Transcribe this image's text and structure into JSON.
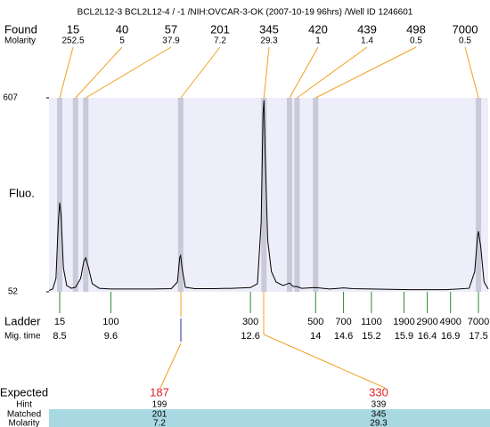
{
  "chart_data": {
    "type": "line",
    "title": "BCL2L12-3  BCL2L12-4 / -1 /NIH:OVCAR-3-OK (2007-10-19 96hrs) /Well ID 1246601",
    "y_label": "Fluo.",
    "ylim": [
      52,
      607
    ],
    "yticks": [
      52,
      607
    ],
    "xlim": [
      8.27,
      17.71
    ],
    "plot_color": "#eeeefa",
    "band_color": "#c9c9d9",
    "link_color": "#f0a020",
    "ladder_color": "#2a8a2a",
    "trace_color": "#000000",
    "trace": {
      "x": [
        8.27,
        8.35,
        8.42,
        8.47,
        8.5,
        8.53,
        8.58,
        8.65,
        8.75,
        8.84,
        8.95,
        9.02,
        9.06,
        9.12,
        9.2,
        9.35,
        9.6,
        10.0,
        10.5,
        10.9,
        11.03,
        11.08,
        11.1,
        11.13,
        11.2,
        11.4,
        11.8,
        12.2,
        12.6,
        12.75,
        12.83,
        12.87,
        12.89,
        12.92,
        12.97,
        13.05,
        13.15,
        13.3,
        13.44,
        13.52,
        13.6,
        13.7,
        14.0,
        14.3,
        14.6,
        14.8,
        15.2,
        16.0,
        16.8,
        17.3,
        17.42,
        17.48,
        17.5,
        17.55,
        17.62,
        17.71
      ],
      "y": [
        56,
        60,
        90,
        250,
        307,
        270,
        120,
        70,
        62,
        65,
        90,
        140,
        149,
        120,
        75,
        62,
        60,
        60,
        60,
        61,
        80,
        150,
        156,
        120,
        65,
        61,
        61,
        62,
        64,
        75,
        250,
        560,
        600,
        430,
        200,
        110,
        80,
        70,
        77,
        67,
        67,
        62,
        64,
        60,
        63,
        61,
        60,
        58,
        58,
        62,
        110,
        210,
        225,
        180,
        80,
        60
      ]
    },
    "found": {
      "label": "Found",
      "molarity_label": "Molarity",
      "peaks": [
        {
          "size": 15,
          "molarity": 252.5,
          "migtime": 8.5
        },
        {
          "size": 40,
          "molarity": 5,
          "migtime": 8.84
        },
        {
          "size": 57,
          "molarity": 37.9,
          "migtime": 9.06
        },
        {
          "size": 201,
          "molarity": 7.2,
          "migtime": 11.1
        },
        {
          "size": 345,
          "molarity": 29.3,
          "migtime": 12.89
        },
        {
          "size": 420,
          "molarity": 1,
          "migtime": 13.44
        },
        {
          "size": 439,
          "molarity": 1.4,
          "migtime": 13.6
        },
        {
          "size": 498,
          "molarity": 0.5,
          "migtime": 14.0
        },
        {
          "size": 7000,
          "molarity": 0.5,
          "migtime": 17.5
        }
      ]
    },
    "ladder": {
      "label": "Ladder",
      "migtime_label": "Mig. time",
      "sizes": [
        15,
        100,
        300,
        500,
        700,
        1100,
        1900,
        2900,
        4900,
        7000
      ],
      "migtimes": [
        8.5,
        9.6,
        12.6,
        14,
        14.6,
        15.2,
        15.9,
        16.4,
        16.9,
        17.5
      ]
    },
    "table": {
      "expected": {
        "label": "Expected",
        "values": [
          187,
          330
        ]
      },
      "hint": {
        "label": "Hint",
        "values": [
          199,
          339
        ]
      },
      "matched": {
        "label": "Matched",
        "values": [
          201,
          345
        ]
      },
      "molarity": {
        "label": "Molarity",
        "values": [
          7.2,
          29.3
        ]
      }
    }
  }
}
